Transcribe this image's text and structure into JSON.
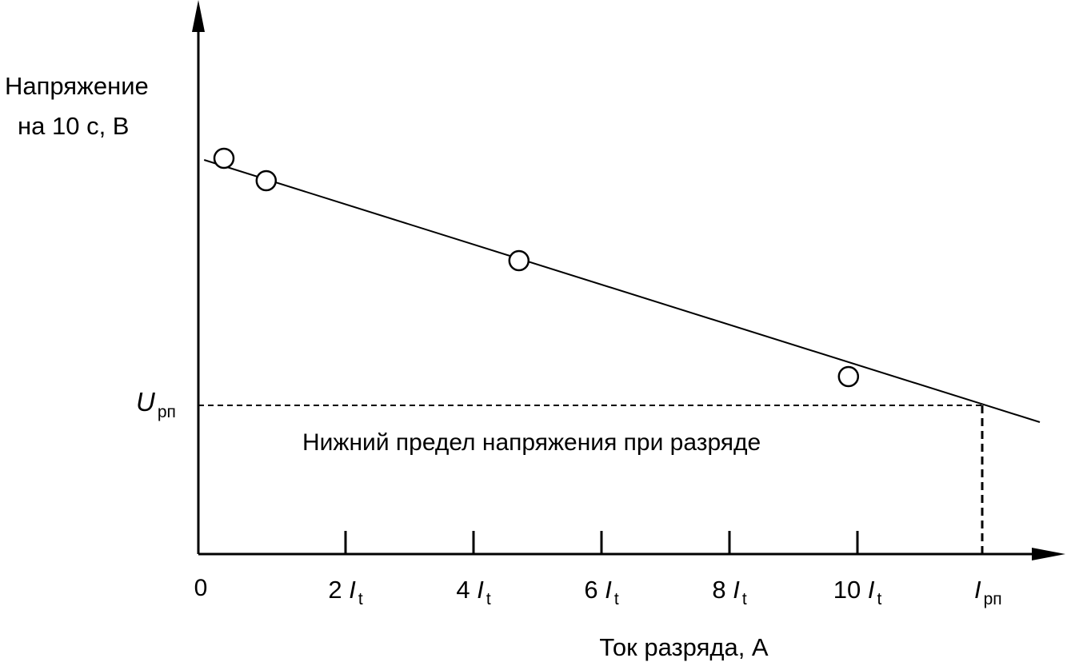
{
  "chart_data": {
    "type": "scatter",
    "title": "",
    "ylabel_lines": [
      "Напряжение",
      "на 10 с, В"
    ],
    "xlabel": "Ток разряда, А",
    "origin_label": "0",
    "x_ticks": [
      {
        "value": 2,
        "num": "2",
        "sym": "I",
        "sub": "t"
      },
      {
        "value": 4,
        "num": "4",
        "sym": "I",
        "sub": "t"
      },
      {
        "value": 6,
        "num": "6",
        "sym": "I",
        "sub": "t"
      },
      {
        "value": 8,
        "num": "8",
        "sym": "I",
        "sub": "t"
      },
      {
        "value": 10,
        "num": "10",
        "sym": "I",
        "sub": "t"
      }
    ],
    "xlim": [
      -0.3,
      13.3
    ],
    "ylim": [
      0,
      6.9
    ],
    "points": [
      {
        "x": 0.1,
        "y": 4.95
      },
      {
        "x": 0.76,
        "y": 4.67
      },
      {
        "x": 4.71,
        "y": 3.67
      },
      {
        "x": 9.86,
        "y": 2.22
      }
    ],
    "fit_line": {
      "x": [
        -0.21,
        12.85
      ],
      "y": [
        4.93,
        1.65
      ]
    },
    "lower_limit": {
      "x": 11.95,
      "y": 1.86,
      "u_label": {
        "sym": "U",
        "sub": "рп"
      },
      "i_label": {
        "sym": "I",
        "sub": "рп"
      },
      "annotation": "Нижний предел напряжения при разряде"
    },
    "grid": false,
    "legend": "none"
  }
}
